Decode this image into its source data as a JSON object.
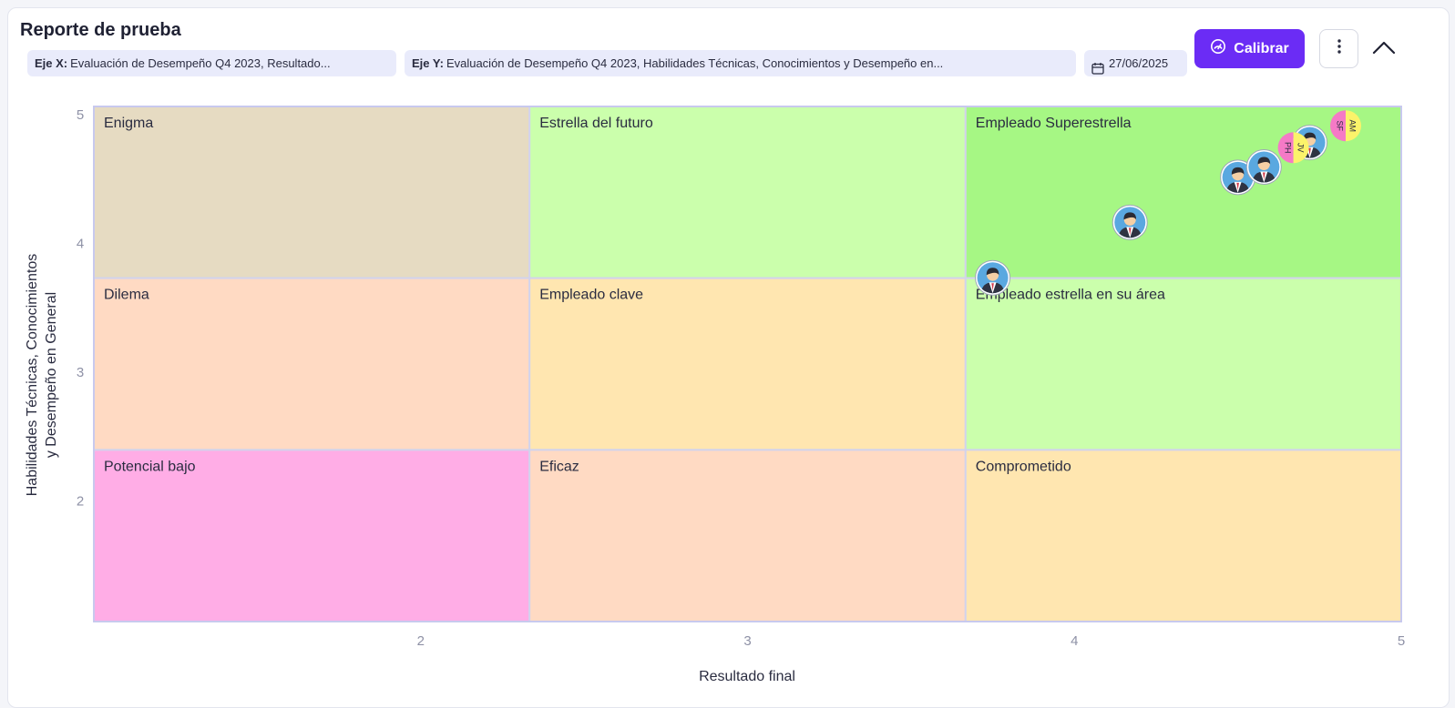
{
  "report": {
    "title": "Reporte de prueba",
    "x_chip_label": "Eje X:",
    "x_chip_value": "Evaluación de Desempeño Q4 2023, Resultado...",
    "y_chip_label": "Eje Y:",
    "y_chip_value": "Evaluación de Desempeño Q4 2023, Habilidades Técnicas, Conocimientos y Desempeño en...",
    "date": "27/06/2025",
    "calibrate_label": "Calibrar"
  },
  "colors": {
    "accent": "#6b2cf5",
    "chip_bg": "#e9ebfb",
    "avatar_blue": "#5aa8e0",
    "initials_pink": "#f57ac6",
    "initials_yellow": "#fbf36a"
  },
  "chart_data": {
    "type": "scatter",
    "xlabel": "Resultado final",
    "ylabel_lines": [
      "Habilidades Técnicas, Conocimientos",
      "y Desempeño en General"
    ],
    "xlim": [
      1,
      5
    ],
    "ylim": [
      1,
      5
    ],
    "x_ticks": [
      2,
      3,
      4,
      5
    ],
    "y_ticks": [
      2,
      3,
      4,
      5
    ],
    "x_bounds": [
      1,
      2.333,
      3.667,
      5
    ],
    "y_bounds": [
      1,
      2.333,
      3.667,
      5
    ],
    "cells": [
      {
        "label": "Enigma",
        "col": 0,
        "row": 2,
        "color": "#e6dbc2"
      },
      {
        "label": "Estrella del futuro",
        "col": 1,
        "row": 2,
        "color": "#cbffac"
      },
      {
        "label": "Empleado Superestrella",
        "col": 2,
        "row": 2,
        "color": "#a6f784"
      },
      {
        "label": "Dilema",
        "col": 0,
        "row": 1,
        "color": "#ffdac3"
      },
      {
        "label": "Empleado clave",
        "col": 1,
        "row": 1,
        "color": "#ffe6b0"
      },
      {
        "label": "Empleado estrella en su área",
        "col": 2,
        "row": 1,
        "color": "#cbffac"
      },
      {
        "label": "Potencial bajo",
        "col": 0,
        "row": 0,
        "color": "#ffade6"
      },
      {
        "label": "Eficaz",
        "col": 1,
        "row": 0,
        "color": "#ffdac3"
      },
      {
        "label": "Comprometido",
        "col": 2,
        "row": 0,
        "color": "#ffe6b0"
      }
    ],
    "points": [
      {
        "x": 3.75,
        "y": 3.67,
        "kind": "avatar"
      },
      {
        "x": 4.17,
        "y": 4.1,
        "kind": "avatar"
      },
      {
        "x": 4.5,
        "y": 4.45,
        "kind": "avatar"
      },
      {
        "x": 4.58,
        "y": 4.53,
        "kind": "avatar"
      },
      {
        "x": 4.72,
        "y": 4.72,
        "kind": "avatar"
      },
      {
        "x": 4.67,
        "y": 4.68,
        "kind": "initials",
        "initials_a": "PH",
        "initials_b": "JV"
      },
      {
        "x": 4.83,
        "y": 4.85,
        "kind": "initials",
        "initials_a": "SF",
        "initials_b": "AM"
      }
    ]
  }
}
